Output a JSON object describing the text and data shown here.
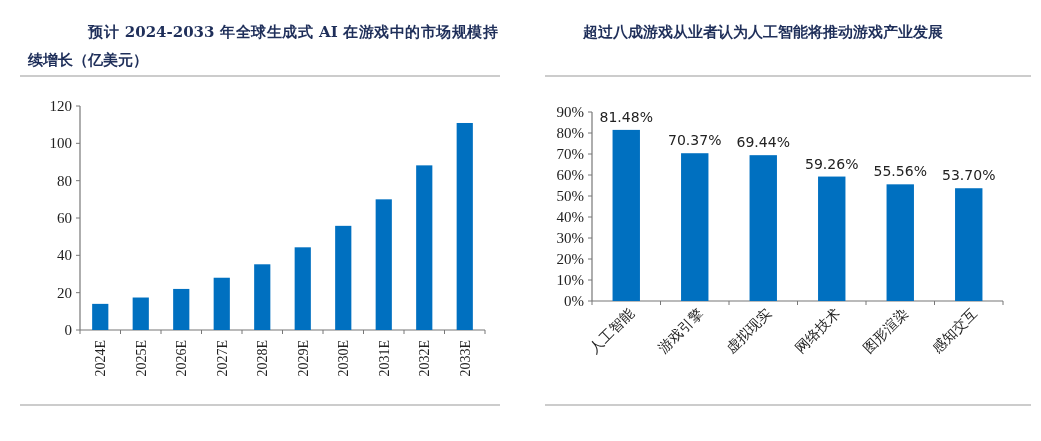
{
  "chart_data": [
    {
      "type": "bar",
      "title": "预计 2024-2033 年全球生成式 AI 在游戏中的市场规模持续增长（亿美元）",
      "categories": [
        "2024E",
        "2025E",
        "2026E",
        "2027E",
        "2028E",
        "2029E",
        "2030E",
        "2031E",
        "2032E",
        "2033E"
      ],
      "values": [
        14,
        17.4,
        22,
        28,
        35.2,
        44.3,
        55.8,
        70,
        88.2,
        110.9
      ],
      "color": "#0070c0",
      "ylim": [
        0,
        120
      ],
      "yticks": [
        0,
        20,
        40,
        60,
        80,
        100,
        120
      ]
    },
    {
      "type": "bar",
      "title": "超过八成游戏从业者认为人工智能将推动游戏产业发展",
      "categories": [
        "人工智能",
        "游戏引擎",
        "虚拟现实",
        "网络技术",
        "图形渲染",
        "感知交互"
      ],
      "values": [
        81.48,
        70.37,
        69.44,
        59.26,
        55.56,
        53.7
      ],
      "value_labels": [
        "81.48%",
        "70.37%",
        "69.44%",
        "59.26%",
        "55.56%",
        "53.70%"
      ],
      "color": "#0070c0",
      "ylim": [
        0,
        90
      ],
      "yticks": [
        {
          "value": 0,
          "label": "0%"
        },
        {
          "value": 10,
          "label": "10%"
        },
        {
          "value": 20,
          "label": "20%"
        },
        {
          "value": 30,
          "label": "30%"
        },
        {
          "value": 40,
          "label": "40%"
        },
        {
          "value": 50,
          "label": "50%"
        },
        {
          "value": 60,
          "label": "60%"
        },
        {
          "value": 70,
          "label": "70%"
        },
        {
          "value": 80,
          "label": "80%"
        },
        {
          "value": 90,
          "label": "90%"
        }
      ]
    }
  ]
}
